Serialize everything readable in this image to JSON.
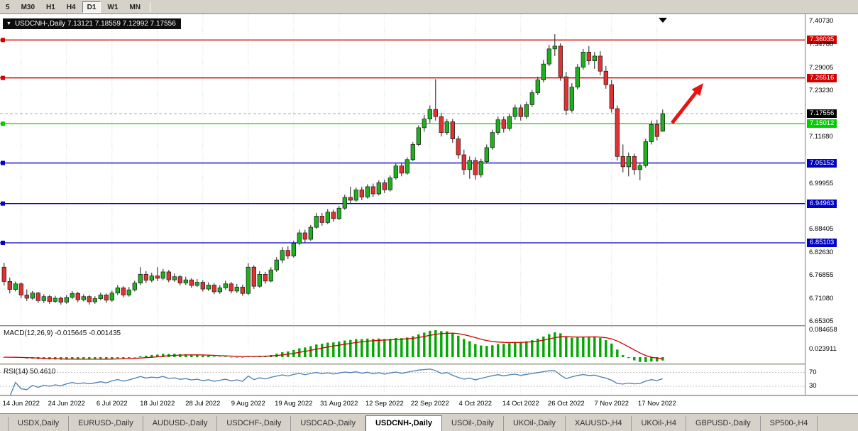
{
  "toolbar": {
    "timeframes": [
      "5",
      "M30",
      "H1",
      "H4",
      "D1",
      "W1",
      "MN"
    ],
    "active": "D1"
  },
  "chart": {
    "title": "USDCNH-,Daily  7.13121 7.18559 7.12992 7.17556",
    "symbol": "USDCNH-",
    "timeframe": "Daily"
  },
  "indicators": {
    "macd_label": "MACD(12,26,9) -0.015645 -0.001435",
    "rsi_label": "RSI(14) 50.4610",
    "macd_axis": [
      {
        "text": "0.084658",
        "value": 0.084658
      },
      {
        "text": "0.023911",
        "value": 0.023911
      }
    ],
    "rsi_axis": [
      {
        "text": "70",
        "value": 70
      },
      {
        "text": "30",
        "value": 30
      }
    ]
  },
  "price_axis": {
    "ticks": [
      {
        "text": "7.40730",
        "value": 7.4073,
        "style": "plain"
      },
      {
        "text": "7.36035",
        "value": 7.36035,
        "style": "red"
      },
      {
        "text": "7.34780",
        "value": 7.3478,
        "style": "plain"
      },
      {
        "text": "7.29005",
        "value": 7.29005,
        "style": "plain"
      },
      {
        "text": "7.26516",
        "value": 7.26516,
        "style": "red"
      },
      {
        "text": "7.23230",
        "value": 7.2323,
        "style": "plain"
      },
      {
        "text": "7.17556",
        "value": 7.17556,
        "style": "black"
      },
      {
        "text": "7.15012",
        "value": 7.15012,
        "style": "green"
      },
      {
        "text": "7.11680",
        "value": 7.1168,
        "style": "plain"
      },
      {
        "text": "7.05152",
        "value": 7.05152,
        "style": "blue"
      },
      {
        "text": "6.99955",
        "value": 6.99955,
        "style": "plain"
      },
      {
        "text": "6.94963",
        "value": 6.94963,
        "style": "blue"
      },
      {
        "text": "6.88405",
        "value": 6.88405,
        "style": "plain"
      },
      {
        "text": "6.85103",
        "value": 6.85103,
        "style": "blue"
      },
      {
        "text": "6.82630",
        "value": 6.8263,
        "style": "plain"
      },
      {
        "text": "6.76855",
        "value": 6.76855,
        "style": "plain"
      },
      {
        "text": "6.71080",
        "value": 6.7108,
        "style": "plain"
      },
      {
        "text": "6.65305",
        "value": 6.65305,
        "style": "plain"
      }
    ]
  },
  "tabs": {
    "items": [
      "USDX,Daily",
      "EURUSD-,Daily",
      "AUDUSD-,Daily",
      "USDCHF-,Daily",
      "USDCAD-,Daily",
      "USDCNH-,Daily",
      "USOil-,Daily",
      "UKOil-,Daily",
      "XAUUSD-,H4",
      "UKOil-,H4",
      "GBPUSD-,Daily",
      "SP500-,H4"
    ],
    "active": "USDCNH-,Daily"
  },
  "colors": {
    "candle_up": "#1faf1f",
    "candle_down": "#e03232",
    "candle_outline": "#1a1a1a",
    "line_red": "#d40000",
    "line_green": "#00ce00",
    "line_blue": "#0000c8",
    "bid_line": "#aaaaaa",
    "grid": "#d8d8d8",
    "macd_hist": "#00a800",
    "macd_signal": "#cc0000",
    "rsi_line": "#4a7eb5",
    "arrow": "#e81414"
  },
  "chart_data": {
    "type": "candlestick",
    "title": "USDCNH-,Daily",
    "ohlc_current": {
      "open": 7.13121,
      "high": 7.18559,
      "low": 7.12992,
      "close": 7.17556
    },
    "price_range": {
      "top": 7.4251,
      "bottom": 6.6442
    },
    "bid_line": 7.17556,
    "h_lines": [
      {
        "price": 7.36035,
        "color": "#d40000"
      },
      {
        "price": 7.26516,
        "color": "#d40000"
      },
      {
        "price": 7.15012,
        "color": "#00ce00"
      },
      {
        "price": 7.05152,
        "color": "#0000c8"
      },
      {
        "price": 6.94963,
        "color": "#0000c8"
      },
      {
        "price": 6.85103,
        "color": "#0000c8"
      }
    ],
    "x_labels": [
      {
        "label": "14 Jun 2022",
        "index": 3
      },
      {
        "label": "24 Jun 2022",
        "index": 11
      },
      {
        "label": "6 Jul 2022",
        "index": 19
      },
      {
        "label": "18 Jul 2022",
        "index": 27
      },
      {
        "label": "28 Jul 2022",
        "index": 35
      },
      {
        "label": "9 Aug 2022",
        "index": 43
      },
      {
        "label": "19 Aug 2022",
        "index": 51
      },
      {
        "label": "31 Aug 2022",
        "index": 59
      },
      {
        "label": "12 Sep 2022",
        "index": 67
      },
      {
        "label": "22 Sep 2022",
        "index": 75
      },
      {
        "label": "4 Oct 2022",
        "index": 83
      },
      {
        "label": "14 Oct 2022",
        "index": 91
      },
      {
        "label": "26 Oct 2022",
        "index": 99
      },
      {
        "label": "7 Nov 2022",
        "index": 107
      },
      {
        "label": "17 Nov 2022",
        "index": 115
      }
    ],
    "macd": {
      "params": "12,26,9",
      "main": -0.015645,
      "signal": -0.001435,
      "peak_label": 0.084658
    },
    "rsi": {
      "period": 14,
      "value": 50.461,
      "levels": [
        70,
        30
      ]
    },
    "annotations": [
      {
        "type": "arrow",
        "from_index": 118,
        "from_price": 7.152,
        "to_index": 123.5,
        "to_price": 7.252
      }
    ],
    "candles": [
      [
        6.79,
        6.801,
        6.744,
        6.754
      ],
      [
        6.754,
        6.764,
        6.724,
        6.734
      ],
      [
        6.734,
        6.754,
        6.729,
        6.748
      ],
      [
        6.748,
        6.752,
        6.712,
        6.72
      ],
      [
        6.72,
        6.734,
        6.705,
        6.712
      ],
      [
        6.712,
        6.73,
        6.708,
        6.725
      ],
      [
        6.725,
        6.728,
        6.7,
        6.706
      ],
      [
        6.706,
        6.722,
        6.7,
        6.716
      ],
      [
        6.716,
        6.72,
        6.698,
        6.704
      ],
      [
        6.704,
        6.718,
        6.7,
        6.712
      ],
      [
        6.712,
        6.716,
        6.696,
        6.702
      ],
      [
        6.702,
        6.72,
        6.698,
        6.714
      ],
      [
        6.714,
        6.73,
        6.71,
        6.724
      ],
      [
        6.724,
        6.728,
        6.702,
        6.708
      ],
      [
        6.708,
        6.722,
        6.704,
        6.716
      ],
      [
        6.716,
        6.72,
        6.696,
        6.703
      ],
      [
        6.703,
        6.717,
        6.698,
        6.711
      ],
      [
        6.711,
        6.726,
        6.707,
        6.72
      ],
      [
        6.72,
        6.724,
        6.7,
        6.707
      ],
      [
        6.707,
        6.731,
        6.703,
        6.725
      ],
      [
        6.725,
        6.745,
        6.72,
        6.738
      ],
      [
        6.738,
        6.742,
        6.714,
        6.72
      ],
      [
        6.72,
        6.74,
        6.716,
        6.733
      ],
      [
        6.733,
        6.756,
        6.729,
        6.75
      ],
      [
        6.75,
        6.79,
        6.745,
        6.772
      ],
      [
        6.772,
        6.78,
        6.75,
        6.757
      ],
      [
        6.757,
        6.776,
        6.752,
        6.768
      ],
      [
        6.768,
        6.79,
        6.755,
        6.762
      ],
      [
        6.762,
        6.786,
        6.757,
        6.778
      ],
      [
        6.778,
        6.783,
        6.752,
        6.758
      ],
      [
        6.758,
        6.774,
        6.753,
        6.766
      ],
      [
        6.766,
        6.77,
        6.744,
        6.75
      ],
      [
        6.75,
        6.766,
        6.745,
        6.758
      ],
      [
        6.758,
        6.762,
        6.738,
        6.744
      ],
      [
        6.744,
        6.76,
        6.74,
        6.752
      ],
      [
        6.752,
        6.757,
        6.729,
        6.735
      ],
      [
        6.735,
        6.752,
        6.73,
        6.745
      ],
      [
        6.745,
        6.75,
        6.722,
        6.728
      ],
      [
        6.728,
        6.745,
        6.723,
        6.738
      ],
      [
        6.738,
        6.756,
        6.733,
        6.748
      ],
      [
        6.748,
        6.753,
        6.724,
        6.73
      ],
      [
        6.73,
        6.748,
        6.725,
        6.74
      ],
      [
        6.74,
        6.746,
        6.718,
        6.724
      ],
      [
        6.724,
        6.8,
        6.72,
        6.79
      ],
      [
        6.79,
        6.795,
        6.735,
        6.742
      ],
      [
        6.742,
        6.78,
        6.738,
        6.772
      ],
      [
        6.772,
        6.778,
        6.748,
        6.755
      ],
      [
        6.755,
        6.79,
        6.752,
        6.783
      ],
      [
        6.783,
        6.815,
        6.778,
        6.808
      ],
      [
        6.808,
        6.84,
        6.8,
        6.832
      ],
      [
        6.832,
        6.842,
        6.81,
        6.818
      ],
      [
        6.818,
        6.856,
        6.814,
        6.85
      ],
      [
        6.85,
        6.884,
        6.845,
        6.876
      ],
      [
        6.876,
        6.884,
        6.852,
        6.86
      ],
      [
        6.86,
        6.896,
        6.856,
        6.89
      ],
      [
        6.89,
        6.926,
        6.886,
        6.918
      ],
      [
        6.918,
        6.926,
        6.894,
        6.902
      ],
      [
        6.902,
        6.936,
        6.898,
        6.928
      ],
      [
        6.928,
        6.934,
        6.904,
        6.912
      ],
      [
        6.912,
        6.944,
        6.908,
        6.938
      ],
      [
        6.938,
        6.972,
        6.934,
        6.965
      ],
      [
        6.965,
        6.992,
        6.95,
        6.958
      ],
      [
        6.958,
        6.99,
        6.954,
        6.984
      ],
      [
        6.984,
        6.992,
        6.958,
        6.966
      ],
      [
        6.966,
        6.998,
        6.962,
        6.992
      ],
      [
        6.992,
        7.0,
        6.966,
        6.974
      ],
      [
        6.974,
        7.008,
        6.97,
        7.002
      ],
      [
        7.002,
        7.01,
        6.976,
        6.984
      ],
      [
        6.984,
        7.02,
        6.98,
        7.014
      ],
      [
        7.014,
        7.05,
        7.01,
        7.044
      ],
      [
        7.044,
        7.052,
        7.018,
        7.026
      ],
      [
        7.026,
        7.066,
        7.022,
        7.06
      ],
      [
        7.06,
        7.104,
        7.056,
        7.098
      ],
      [
        7.098,
        7.146,
        7.094,
        7.14
      ],
      [
        7.14,
        7.172,
        7.13,
        7.162
      ],
      [
        7.162,
        7.196,
        7.152,
        7.186
      ],
      [
        7.186,
        7.262,
        7.158,
        7.168
      ],
      [
        7.168,
        7.178,
        7.118,
        7.128
      ],
      [
        7.128,
        7.162,
        7.122,
        7.155
      ],
      [
        7.155,
        7.162,
        7.102,
        7.112
      ],
      [
        7.112,
        7.12,
        7.062,
        7.072
      ],
      [
        7.072,
        7.085,
        7.022,
        7.035
      ],
      [
        7.035,
        7.068,
        7.012,
        7.058
      ],
      [
        7.058,
        7.066,
        7.01,
        7.022
      ],
      [
        7.022,
        7.062,
        7.015,
        7.055
      ],
      [
        7.055,
        7.098,
        7.05,
        7.09
      ],
      [
        7.09,
        7.135,
        7.085,
        7.128
      ],
      [
        7.128,
        7.168,
        7.122,
        7.16
      ],
      [
        7.16,
        7.168,
        7.128,
        7.138
      ],
      [
        7.138,
        7.175,
        7.132,
        7.168
      ],
      [
        7.168,
        7.198,
        7.16,
        7.19
      ],
      [
        7.19,
        7.198,
        7.158,
        7.168
      ],
      [
        7.168,
        7.205,
        7.162,
        7.198
      ],
      [
        7.198,
        7.235,
        7.192,
        7.228
      ],
      [
        7.228,
        7.268,
        7.222,
        7.26
      ],
      [
        7.26,
        7.31,
        7.254,
        7.3
      ],
      [
        7.3,
        7.348,
        7.295,
        7.338
      ],
      [
        7.338,
        7.375,
        7.32,
        7.345
      ],
      [
        7.345,
        7.352,
        7.258,
        7.268
      ],
      [
        7.268,
        7.28,
        7.172,
        7.184
      ],
      [
        7.184,
        7.252,
        7.178,
        7.242
      ],
      [
        7.242,
        7.3,
        7.236,
        7.292
      ],
      [
        7.292,
        7.338,
        7.286,
        7.33
      ],
      [
        7.33,
        7.345,
        7.298,
        7.308
      ],
      [
        7.308,
        7.33,
        7.288,
        7.32
      ],
      [
        7.32,
        7.332,
        7.272,
        7.282
      ],
      [
        7.282,
        7.295,
        7.238,
        7.248
      ],
      [
        7.248,
        7.26,
        7.178,
        7.188
      ],
      [
        7.188,
        7.196,
        7.058,
        7.068
      ],
      [
        7.068,
        7.098,
        7.028,
        7.042
      ],
      [
        7.042,
        7.078,
        7.018,
        7.068
      ],
      [
        7.068,
        7.075,
        7.022,
        7.035
      ],
      [
        7.035,
        7.052,
        7.008,
        7.045
      ],
      [
        7.045,
        7.112,
        7.04,
        7.105
      ],
      [
        7.105,
        7.158,
        7.098,
        7.148
      ],
      [
        7.148,
        7.16,
        7.108,
        7.118
      ],
      [
        7.13121,
        7.18559,
        7.12992,
        7.17556
      ]
    ]
  }
}
